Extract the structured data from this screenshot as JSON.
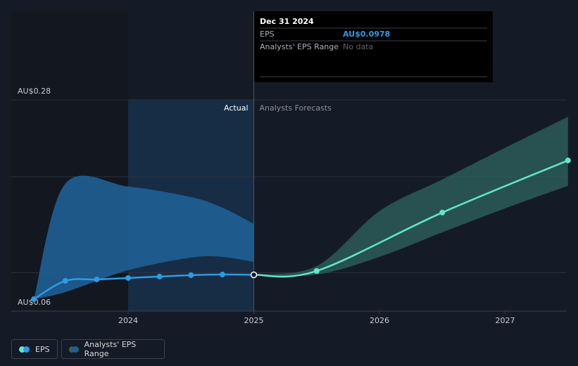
{
  "chart_data": {
    "type": "line",
    "y_labels": [
      {
        "value": 0.06,
        "label": "AU$0.06"
      },
      {
        "value": 0.28,
        "label": "AU$0.28"
      }
    ],
    "gridlines": [
      0.1,
      0.2,
      0.28
    ],
    "ylim": [
      0.06,
      0.28
    ],
    "xlim": [
      2023.07,
      2027.49
    ],
    "xticks": [
      2024,
      2025,
      2026,
      2027
    ],
    "highlight": [
      2024,
      2025
    ],
    "actual_label": "Actual",
    "forecast_label": "Analysts Forecasts",
    "series": [
      {
        "name": "EPS",
        "color": "#2c9be6",
        "forecast_color": "#62e6cc",
        "x": [
          2023.25,
          2023.5,
          2023.75,
          2024,
          2024.25,
          2024.5,
          2024.75,
          2025,
          2025.5,
          2026.5,
          2027.5
        ],
        "values": [
          0.0725,
          0.0915,
          0.093,
          0.0945,
          0.096,
          0.0974,
          0.0981,
          0.0978,
          0.1018,
          0.1627,
          0.217
        ]
      }
    ],
    "bands": [
      {
        "color": "#1f5f93",
        "x": [
          2023.25,
          2023.5,
          2024,
          2024.5,
          2024.75,
          2025
        ],
        "high": [
          0.0725,
          0.1927,
          0.1898,
          0.1788,
          0.1678,
          0.1509
        ],
        "low": [
          0.0725,
          0.0798,
          0.1025,
          0.1157,
          0.1165,
          0.1113
        ]
      },
      {
        "name": "Analysts' EPS Range",
        "color": "#2e6660",
        "x": [
          2025,
          2025.5,
          2026,
          2026.5,
          2027,
          2027.5
        ],
        "high": [
          0.0981,
          0.1069,
          0.1641,
          0.1971,
          0.2301,
          0.2624
        ],
        "low": [
          0.0981,
          0.0981,
          0.1165,
          0.1421,
          0.1671,
          0.1905
        ]
      }
    ],
    "tooltip": {
      "date": "Dec 31 2024",
      "rows": [
        [
          "EPS",
          "AU$0.0978"
        ],
        [
          "Analysts' EPS Range",
          "No data"
        ]
      ]
    }
  }
}
